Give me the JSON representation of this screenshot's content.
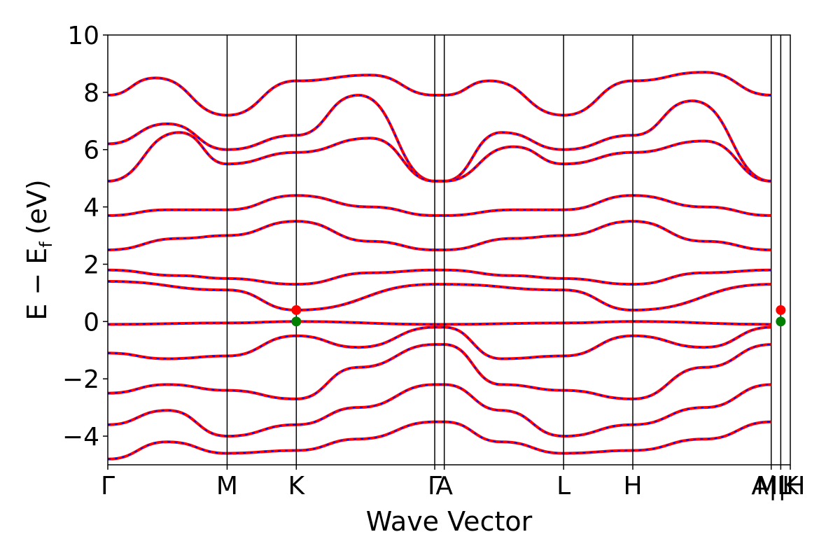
{
  "chart_data": {
    "type": "line",
    "title": "",
    "xlabel": "Wave Vector",
    "ylabel": "E − E_f (eV)",
    "ylabel_parts": {
      "main": "E − E",
      "sub": "f",
      "unit": "(eV)"
    },
    "ylim": [
      -5,
      10
    ],
    "yticks": [
      -4,
      -2,
      0,
      2,
      4,
      6,
      8,
      10
    ],
    "ytick_labels": [
      "−4",
      "−2",
      "0",
      "2",
      "4",
      "6",
      "8",
      "10"
    ],
    "xlim": [
      0,
      5.72
    ],
    "kpoints": [
      {
        "label": "Γ",
        "x": 0.0
      },
      {
        "label": "M",
        "x": 1.0
      },
      {
        "label": "K",
        "x": 1.58
      },
      {
        "label": "Γ",
        "x": 2.74
      },
      {
        "label": "A",
        "x": 2.82
      },
      {
        "label": "L",
        "x": 3.82
      },
      {
        "label": "H",
        "x": 4.4
      },
      {
        "label": "A|L",
        "x": 5.56
      },
      {
        "label": "M|H",
        "x": 5.64
      },
      {
        "label": "K",
        "x": 5.72
      }
    ],
    "grid": false,
    "legend": "none",
    "series": [
      {
        "color": "#ff0000",
        "style": "solid",
        "linewidth": 4
      },
      {
        "color": "#0000ff",
        "style": "dotted",
        "linewidth": 2
      }
    ],
    "bands": [
      {
        "x": [
          0,
          1.0,
          1.58,
          2.74,
          2.82,
          3.82,
          4.4,
          5.56
        ],
        "y": [
          -0.1,
          -0.05,
          0.0,
          -0.1,
          -0.1,
          -0.05,
          0.0,
          -0.1
        ]
      },
      {
        "x": [
          0,
          1.0,
          1.58,
          2.74,
          2.82,
          3.82,
          4.4,
          5.56
        ],
        "y": [
          1.4,
          1.1,
          0.4,
          1.3,
          1.3,
          1.1,
          0.4,
          1.3
        ]
      },
      {
        "x": [
          0,
          0.4,
          1.0,
          1.58,
          2.2,
          2.74,
          2.82,
          3.2,
          3.82,
          4.4,
          5.0,
          5.56
        ],
        "y": [
          7.9,
          8.5,
          7.2,
          8.4,
          8.6,
          7.9,
          7.9,
          8.4,
          7.2,
          8.4,
          8.7,
          7.9
        ]
      },
      {
        "x": [
          0,
          0.5,
          1.0,
          1.58,
          2.1,
          2.74,
          2.82,
          3.3,
          3.82,
          4.4,
          4.9,
          5.56
        ],
        "y": [
          6.2,
          6.9,
          6.0,
          6.5,
          7.9,
          4.9,
          4.9,
          6.6,
          6.0,
          6.5,
          7.7,
          4.9
        ]
      },
      {
        "x": [
          0,
          0.6,
          1.0,
          1.58,
          2.2,
          2.74,
          2.82,
          3.4,
          3.82,
          4.4,
          5.0,
          5.56
        ],
        "y": [
          4.9,
          6.6,
          5.5,
          5.9,
          6.4,
          4.9,
          4.9,
          6.1,
          5.5,
          5.9,
          6.3,
          4.9
        ]
      },
      {
        "x": [
          0,
          0.5,
          1.0,
          1.58,
          2.2,
          2.74,
          2.82,
          3.4,
          3.82,
          4.4,
          5.0,
          5.56
        ],
        "y": [
          3.7,
          3.9,
          3.9,
          4.4,
          4.0,
          3.7,
          3.7,
          3.9,
          3.9,
          4.4,
          4.0,
          3.7
        ]
      },
      {
        "x": [
          0,
          0.6,
          1.0,
          1.58,
          2.2,
          2.74,
          2.82,
          3.4,
          3.82,
          4.4,
          5.0,
          5.56
        ],
        "y": [
          2.5,
          2.9,
          3.0,
          3.5,
          2.8,
          2.5,
          2.5,
          2.9,
          3.0,
          3.5,
          2.8,
          2.5
        ]
      },
      {
        "x": [
          0,
          0.6,
          1.0,
          1.58,
          2.2,
          2.74,
          2.82,
          3.4,
          3.82,
          4.4,
          5.0,
          5.56
        ],
        "y": [
          1.8,
          1.6,
          1.5,
          1.3,
          1.7,
          1.8,
          1.8,
          1.6,
          1.5,
          1.3,
          1.7,
          1.8
        ]
      },
      {
        "x": [
          0,
          0.5,
          1.0,
          1.58,
          2.1,
          2.74,
          2.82,
          3.3,
          3.82,
          4.4,
          5.0,
          5.56
        ],
        "y": [
          -1.1,
          -1.3,
          -1.2,
          -0.5,
          -0.9,
          -0.2,
          -0.2,
          -1.3,
          -1.2,
          -0.5,
          -0.9,
          -0.2
        ]
      },
      {
        "x": [
          0,
          0.5,
          1.0,
          1.58,
          2.1,
          2.74,
          2.82,
          3.3,
          3.82,
          4.4,
          5.0,
          5.56
        ],
        "y": [
          -2.5,
          -2.2,
          -2.4,
          -2.7,
          -1.6,
          -0.8,
          -0.8,
          -2.2,
          -2.4,
          -2.7,
          -1.6,
          -0.8
        ]
      },
      {
        "x": [
          0,
          0.5,
          1.0,
          1.58,
          2.1,
          2.74,
          2.82,
          3.3,
          3.82,
          4.4,
          5.0,
          5.56
        ],
        "y": [
          -3.6,
          -3.1,
          -4.0,
          -3.6,
          -3.0,
          -2.2,
          -2.2,
          -3.1,
          -4.0,
          -3.6,
          -3.0,
          -2.2
        ]
      },
      {
        "x": [
          0,
          0.5,
          1.0,
          1.58,
          2.1,
          2.74,
          2.82,
          3.3,
          3.82,
          4.4,
          5.0,
          5.56
        ],
        "y": [
          -4.8,
          -4.2,
          -4.6,
          -4.5,
          -4.1,
          -3.5,
          -3.5,
          -4.2,
          -4.6,
          -4.5,
          -4.1,
          -3.5
        ]
      }
    ],
    "markers": [
      {
        "x": 1.58,
        "y": 0.4,
        "color": "#ff0000"
      },
      {
        "x": 1.58,
        "y": 0.0,
        "color": "#008000"
      },
      {
        "x": 5.64,
        "y": 0.4,
        "color": "#ff0000"
      },
      {
        "x": 5.64,
        "y": 0.0,
        "color": "#008000"
      }
    ]
  }
}
